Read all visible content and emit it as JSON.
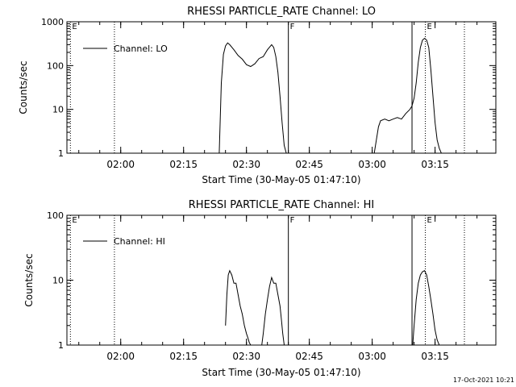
{
  "stamp": "17-Oct-2021 10:21",
  "chart_data": [
    {
      "type": "line",
      "title": "RHESSI PARTICLE_RATE Channel: LO",
      "xlabel": "Start Time (30-May-05 01:47:10)",
      "ylabel": "Counts/sec",
      "yscale": "log",
      "ylim": [
        1,
        1000
      ],
      "yticks": [
        1,
        10,
        100,
        1000
      ],
      "xlim": [
        "01:47:10",
        "03:29:30"
      ],
      "xticks": [
        "02:00",
        "02:15",
        "02:30",
        "02:45",
        "03:00",
        "03:15"
      ],
      "grid": false,
      "legend": {
        "position": "top-left",
        "entries": [
          "Channel: LO"
        ]
      },
      "markers": [
        {
          "time": "01:48:00",
          "style": "dotted",
          "label": "E"
        },
        {
          "time": "01:58:30",
          "style": "dotted",
          "label": ""
        },
        {
          "time": "02:40:00",
          "style": "solid",
          "label": "F"
        },
        {
          "time": "03:09:30",
          "style": "solid",
          "label": ""
        },
        {
          "time": "03:12:40",
          "style": "dotted",
          "label": "E"
        },
        {
          "time": "03:22:00",
          "style": "dotted",
          "label": ""
        }
      ],
      "series": [
        {
          "name": "Channel: LO",
          "segments": [
            {
              "time": [
                "02:23:30",
                "02:24:00",
                "02:24:30",
                "02:25:00",
                "02:25:30",
                "02:26:00",
                "02:27:00",
                "02:28:00",
                "02:29:00",
                "02:30:00",
                "02:31:00",
                "02:32:00",
                "02:33:00",
                "02:34:00",
                "02:35:00",
                "02:36:00",
                "02:36:30",
                "02:37:00",
                "02:37:30",
                "02:38:00",
                "02:38:30",
                "02:39:00",
                "02:39:30"
              ],
              "values": [
                1,
                40,
                180,
                280,
                330,
                300,
                230,
                170,
                140,
                105,
                95,
                110,
                145,
                160,
                230,
                300,
                260,
                160,
                70,
                20,
                5,
                1.5,
                1
              ]
            },
            {
              "time": [
                "03:00:30",
                "03:01:00",
                "03:01:30",
                "03:02:00",
                "03:03:00",
                "03:04:00",
                "03:05:00",
                "03:06:00",
                "03:07:00",
                "03:08:00",
                "03:09:00",
                "03:09:30",
                "03:10:00",
                "03:10:30",
                "03:11:00",
                "03:11:30",
                "03:12:00",
                "03:12:30",
                "03:13:00",
                "03:13:30",
                "03:14:00",
                "03:14:30",
                "03:15:00",
                "03:15:30",
                "03:16:00",
                "03:16:30"
              ],
              "values": [
                1,
                2,
                4,
                5.5,
                6,
                5.5,
                6,
                6.5,
                6,
                8,
                10,
                12,
                18,
                40,
                120,
                260,
                380,
                420,
                380,
                260,
                80,
                20,
                5,
                2,
                1.3,
                1
              ]
            }
          ]
        }
      ]
    },
    {
      "type": "line",
      "title": "RHESSI PARTICLE_RATE Channel: HI",
      "xlabel": "Start Time (30-May-05 01:47:10)",
      "ylabel": "Counts/sec",
      "yscale": "log",
      "ylim": [
        1,
        100
      ],
      "yticks": [
        1,
        10,
        100
      ],
      "xlim": [
        "01:47:10",
        "03:29:30"
      ],
      "xticks": [
        "02:00",
        "02:15",
        "02:30",
        "02:45",
        "03:00",
        "03:15"
      ],
      "grid": false,
      "legend": {
        "position": "top-left",
        "entries": [
          "Channel: HI"
        ]
      },
      "markers": [
        {
          "time": "01:48:00",
          "style": "dotted",
          "label": "E"
        },
        {
          "time": "01:58:30",
          "style": "dotted",
          "label": ""
        },
        {
          "time": "02:40:00",
          "style": "solid",
          "label": "F"
        },
        {
          "time": "03:09:30",
          "style": "solid",
          "label": ""
        },
        {
          "time": "03:12:40",
          "style": "dotted",
          "label": "E"
        },
        {
          "time": "03:22:00",
          "style": "dotted",
          "label": ""
        }
      ],
      "series": [
        {
          "name": "Channel: HI",
          "segments": [
            {
              "time": [
                "02:25:00",
                "02:25:20",
                "02:25:40",
                "02:26:00",
                "02:26:30",
                "02:27:00",
                "02:27:30",
                "02:28:00",
                "02:28:30",
                "02:29:00",
                "02:29:30",
                "02:30:00",
                "02:30:20",
                "02:30:40",
                "02:31:00"
              ],
              "values": [
                2,
                6,
                12,
                14,
                12,
                9,
                9,
                6,
                4,
                3,
                2,
                1.5,
                1.3,
                1.1,
                1
              ]
            },
            {
              "time": [
                "02:33:40",
                "02:34:00",
                "02:34:30",
                "02:35:00",
                "02:35:30",
                "02:36:00",
                "02:36:30",
                "02:37:00",
                "02:37:30",
                "02:38:00",
                "02:38:20",
                "02:38:40",
                "02:39:00"
              ],
              "values": [
                1,
                1.5,
                3,
                5,
                8,
                11,
                9,
                9,
                6,
                4,
                2.5,
                1.5,
                1
              ]
            },
            {
              "time": [
                "03:09:40",
                "03:10:00",
                "03:10:30",
                "03:11:00",
                "03:11:30",
                "03:12:00",
                "03:12:30",
                "03:13:00",
                "03:13:30",
                "03:14:00",
                "03:14:30",
                "03:15:00",
                "03:15:30",
                "03:16:00"
              ],
              "values": [
                1,
                2,
                5,
                9,
                12,
                13.5,
                14,
                12,
                8,
                5,
                3,
                1.7,
                1.2,
                1
              ]
            }
          ]
        }
      ]
    }
  ]
}
